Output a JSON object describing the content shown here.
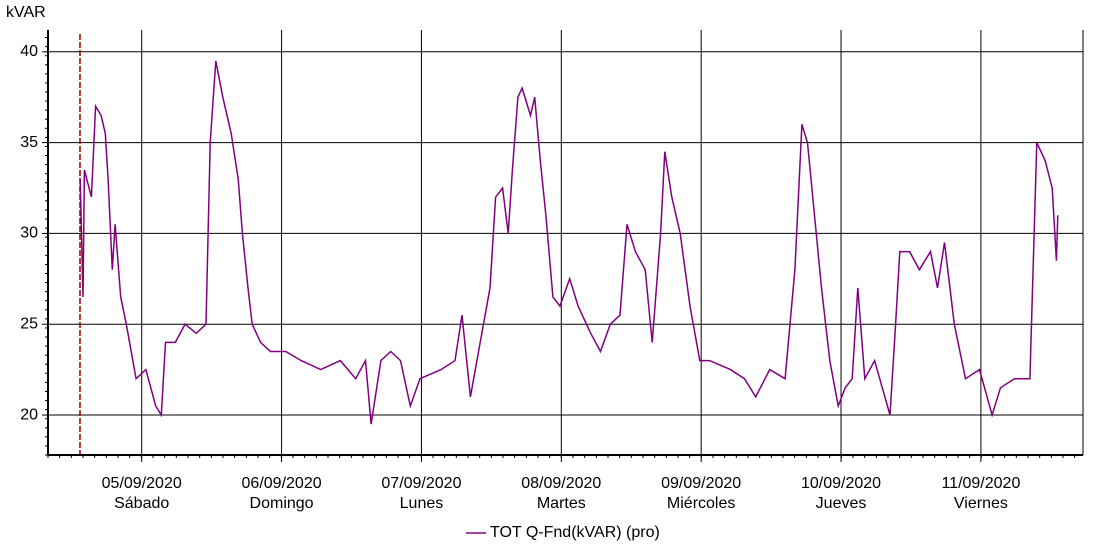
{
  "chart_data": {
    "type": "line",
    "y_label": "kVAR",
    "x": [
      4.56,
      4.58,
      4.59,
      4.64,
      4.67,
      4.71,
      4.74,
      4.76,
      4.79,
      4.81,
      4.85,
      4.89,
      4.96,
      5.03,
      5.1,
      5.14,
      5.17,
      5.24,
      5.31,
      5.39,
      5.46,
      5.49,
      5.53,
      5.58,
      5.64,
      5.69,
      5.72,
      5.76,
      5.79,
      5.85,
      5.92,
      6.03,
      6.14,
      6.28,
      6.42,
      6.53,
      6.6,
      6.64,
      6.71,
      6.78,
      6.85,
      6.92,
      6.99,
      7.14,
      7.24,
      7.29,
      7.35,
      7.42,
      7.49,
      7.53,
      7.58,
      7.62,
      7.65,
      7.69,
      7.72,
      7.78,
      7.81,
      7.85,
      7.89,
      7.94,
      7.99,
      8.06,
      8.12,
      8.21,
      8.28,
      8.35,
      8.42,
      8.47,
      8.53,
      8.6,
      8.65,
      8.71,
      8.74,
      8.79,
      8.85,
      8.92,
      8.99,
      9.06,
      9.21,
      9.31,
      9.39,
      9.49,
      9.6,
      9.67,
      9.72,
      9.76,
      9.81,
      9.86,
      9.92,
      9.98,
      10.03,
      10.08,
      10.12,
      10.17,
      10.24,
      10.35,
      10.39,
      10.42,
      10.49,
      10.56,
      10.64,
      10.69,
      10.74,
      10.81,
      10.89,
      10.99,
      11.08,
      11.14,
      11.24,
      11.35,
      11.4,
      11.46,
      11.51,
      11.54,
      11.55
    ],
    "series": [
      {
        "name": "TOT Q-Fnd(kVAR) (pro)",
        "color": "#800080",
        "values": [
          33,
          26.5,
          33.5,
          32,
          37,
          36.5,
          35.5,
          33,
          28,
          30.5,
          26.5,
          25,
          22,
          22.5,
          20.5,
          20,
          24,
          24,
          25,
          24.5,
          25,
          35,
          39.5,
          37.5,
          35.5,
          33,
          30,
          27,
          25,
          24,
          23.5,
          23.5,
          23,
          22.5,
          23,
          22,
          23,
          19.5,
          23,
          23.5,
          23,
          20.5,
          22,
          22.5,
          23,
          25.5,
          21,
          24,
          27,
          32,
          32.5,
          30,
          33.5,
          37.5,
          38,
          36.5,
          37.5,
          34,
          31,
          26.5,
          26,
          27.5,
          26,
          24.5,
          23.5,
          25,
          25.5,
          30.5,
          29,
          28,
          24,
          30,
          34.5,
          32,
          30,
          26,
          23,
          23,
          22.5,
          22,
          21,
          22.5,
          22,
          28,
          36,
          35,
          31,
          27,
          23,
          20.5,
          21.5,
          22,
          27,
          22,
          23,
          20,
          25,
          29,
          29,
          28,
          29,
          27,
          29.5,
          25,
          22,
          22.5,
          20,
          21.5,
          22,
          22,
          35,
          34,
          32.5,
          28.5,
          31
        ]
      }
    ],
    "xlim": [
      4.33,
      11.73
    ],
    "xticks": [
      {
        "value": 5,
        "label": "05/09/2020"
      },
      {
        "value": 6,
        "label": "06/09/2020"
      },
      {
        "value": 7,
        "label": "07/09/2020"
      },
      {
        "value": 8,
        "label": "08/09/2020"
      },
      {
        "value": 9,
        "label": "09/09/2020"
      },
      {
        "value": 10,
        "label": "10/09/2020"
      },
      {
        "value": 11,
        "label": "11/09/2020"
      }
    ],
    "xtick_days": [
      "Sábado",
      "Domingo",
      "Lunes",
      "Martes",
      "Miércoles",
      "Jueves",
      "Viernes"
    ],
    "ylim": [
      17.8,
      41.2
    ],
    "yticks": [
      20,
      25,
      30,
      35,
      40
    ],
    "grid": true
  }
}
